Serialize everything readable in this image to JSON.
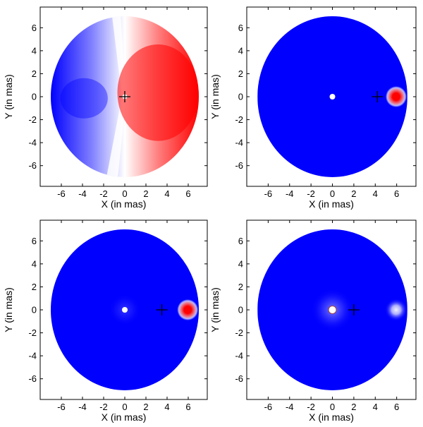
{
  "chart_data": [
    {
      "type": "heatmap",
      "title": "",
      "xlabel": "X (in mas)",
      "ylabel": "Y (in mas)",
      "xlim": [
        -8,
        7.8
      ],
      "ylim": [
        -7.8,
        7.8
      ],
      "xticks": [
        -6,
        -4,
        -2,
        0,
        2,
        4,
        6
      ],
      "yticks": [
        6,
        4,
        2,
        0,
        -2,
        -4,
        -6
      ],
      "disk": {
        "center": [
          0,
          0
        ],
        "radius": 7.0
      },
      "fill": "dipole",
      "colors": {
        "negative": "#0000ff",
        "zero": "#ffffff",
        "positive": "#ff0000"
      },
      "marker_plus": [
        0.0,
        0.0
      ],
      "features": [
        {
          "kind": "white-spot",
          "x": 0.0,
          "y": 0.0
        }
      ]
    },
    {
      "type": "heatmap",
      "title": "",
      "xlabel": "X (in mas)",
      "ylabel": "Y (in mas)",
      "xlim": [
        -8,
        7.8
      ],
      "ylim": [
        -7.8,
        7.8
      ],
      "xticks": [
        -6,
        -4,
        -2,
        0,
        2,
        4,
        6
      ],
      "yticks": [
        6,
        4,
        2,
        0,
        -2,
        -4,
        -6
      ],
      "disk": {
        "center": [
          0,
          0
        ],
        "radius": 7.0
      },
      "fill": "uniform",
      "colors": {
        "background": "#0000ff",
        "spot": "#ff0000",
        "center": "#ffffff"
      },
      "marker_plus": [
        4.2,
        0.0
      ],
      "features": [
        {
          "kind": "white-dot",
          "x": 0.0,
          "y": 0.0
        },
        {
          "kind": "red-spot",
          "x": 5.95,
          "y": 0.0
        }
      ]
    },
    {
      "type": "heatmap",
      "title": "",
      "xlabel": "X (in mas)",
      "ylabel": "Y (in mas)",
      "xlim": [
        -8,
        7.8
      ],
      "ylim": [
        -7.8,
        7.8
      ],
      "xticks": [
        -6,
        -4,
        -2,
        0,
        2,
        4,
        6
      ],
      "yticks": [
        6,
        4,
        2,
        0,
        -2,
        -4,
        -6
      ],
      "disk": {
        "center": [
          0,
          0
        ],
        "radius": 7.0
      },
      "fill": "uniform",
      "colors": {
        "background": "#0000ff",
        "spot": "#ff0000",
        "center": "#ffffff"
      },
      "marker_plus": [
        3.5,
        0.0
      ],
      "features": [
        {
          "kind": "white-dot-halo",
          "x": 0.0,
          "y": 0.0
        },
        {
          "kind": "red-spot",
          "x": 5.95,
          "y": 0.0
        }
      ]
    },
    {
      "type": "heatmap",
      "title": "",
      "xlabel": "X (in mas)",
      "ylabel": "Y (in mas)",
      "xlim": [
        -8,
        7.8
      ],
      "ylim": [
        -7.8,
        7.8
      ],
      "xticks": [
        -6,
        -4,
        -2,
        0,
        2,
        4,
        6
      ],
      "yticks": [
        6,
        4,
        2,
        0,
        -2,
        -4,
        -6
      ],
      "disk": {
        "center": [
          0,
          0
        ],
        "radius": 7.0
      },
      "fill": "uniform",
      "colors": {
        "background": "#0000ff",
        "spot": "#ffffff",
        "center": "#ffffff"
      },
      "marker_plus": [
        2.0,
        0.0
      ],
      "features": [
        {
          "kind": "ring-dot",
          "x": 0.0,
          "y": 0.0
        },
        {
          "kind": "white-glow",
          "x": 5.95,
          "y": 0.0
        }
      ]
    }
  ]
}
